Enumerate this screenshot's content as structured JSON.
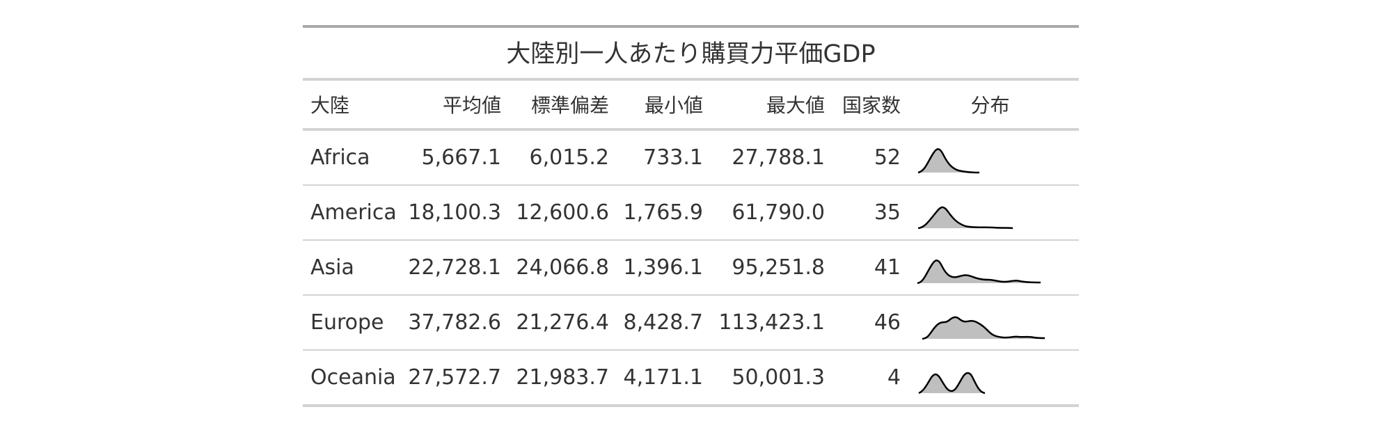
{
  "title": "大陸別一人あたり購買力平価GDP",
  "columns": {
    "continent": "大陸",
    "mean": "平均値",
    "sd": "標準偏差",
    "min": "最小値",
    "max": "最大値",
    "count": "国家数",
    "distribution": "分布"
  },
  "rows": [
    {
      "continent": "Africa",
      "mean": "5,667.1",
      "sd": "6,015.2",
      "min": "733.1",
      "max": "27,788.1",
      "count": "52"
    },
    {
      "continent": "America",
      "mean": "18,100.3",
      "sd": "12,600.6",
      "min": "1,765.9",
      "max": "61,790.0",
      "count": "35"
    },
    {
      "continent": "Asia",
      "mean": "22,728.1",
      "sd": "24,066.8",
      "min": "1,396.1",
      "max": "95,251.8",
      "count": "41"
    },
    {
      "continent": "Europe",
      "mean": "37,782.6",
      "sd": "21,276.4",
      "min": "8,428.7",
      "max": "113,423.1",
      "count": "46"
    },
    {
      "continent": "Oceania",
      "mean": "27,572.7",
      "sd": "21,983.7",
      "min": "4,171.1",
      "max": "50,001.3",
      "count": "4"
    }
  ],
  "colors": {
    "spark_fill": "#bfbfbf",
    "spark_stroke": "#000000",
    "text": "#333333",
    "rule": "#d3d3d3",
    "top_rule": "#a8a8a8"
  }
}
